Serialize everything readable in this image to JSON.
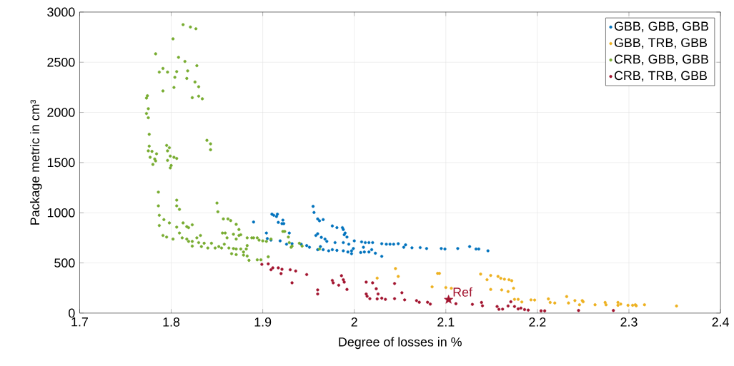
{
  "chart_data": {
    "type": "scatter",
    "xlabel": "Degree of losses in %",
    "ylabel": "Package metric in cm³",
    "xlim": [
      1.7,
      2.4
    ],
    "ylim": [
      0,
      3000
    ],
    "xticks": [
      1.7,
      1.8,
      1.9,
      2,
      2.1,
      2.2,
      2.3,
      2.4
    ],
    "yticks": [
      0,
      500,
      1000,
      1500,
      2000,
      2500,
      3000
    ],
    "grid": true,
    "legend": "top right",
    "series": [
      {
        "name": "GBB, GBB, GBB",
        "marker": "circle",
        "color": "#0072bd",
        "x": [
          1.89,
          1.904,
          1.905,
          1.909,
          1.91,
          1.912,
          1.915,
          1.916,
          1.917,
          1.922,
          1.921,
          1.923,
          1.919,
          1.926,
          1.929,
          1.932,
          1.942,
          1.955,
          1.956,
          1.96,
          1.966,
          1.962,
          1.976,
          1.981,
          1.987,
          1.988,
          1.99,
          1.989,
          1.992,
          1.958,
          1.96,
          1.964,
          1.968,
          1.97,
          1.979,
          1.988,
          1.994,
          2.0,
          1.999,
          1.997,
          1.997,
          1.993,
          1.988,
          1.981,
          1.976,
          1.972,
          1.966,
          1.96,
          1.963,
          1.951,
          1.948,
          2.008,
          2.012,
          2.016,
          2.02,
          2.01,
          2.007,
          2.011,
          2.016,
          2.019,
          2.023,
          2.03,
          2.03,
          2.035,
          2.039,
          2.043,
          2.048,
          2.054,
          2.056,
          2.063,
          2.072,
          2.079,
          2.095,
          2.099,
          2.113,
          2.126,
          2.133,
          2.136,
          2.146
        ],
        "values": [
          908,
          798,
          743,
          727,
          986,
          975,
          963,
          986,
          904,
          927,
          892,
          892,
          720,
          687,
          798,
          692,
          687,
          1064,
          1003,
          939,
          932,
          920,
          869,
          852,
          852,
          833,
          798,
          781,
          758,
          774,
          791,
          755,
          738,
          715,
          703,
          703,
          687,
          720,
          644,
          621,
          592,
          609,
          621,
          625,
          632,
          621,
          632,
          632,
          663,
          656,
          673,
          710,
          703,
          703,
          703,
          656,
          604,
          609,
          609,
          632,
          597,
          692,
          566,
          687,
          687,
          687,
          692,
          656,
          680,
          651,
          653,
          644,
          644,
          639,
          644,
          663,
          639,
          639,
          621
        ]
      },
      {
        "name": "GBB, TRB, GBB",
        "marker": "circle",
        "color": "#edb120",
        "x": [
          2.045,
          2.048,
          2.025,
          2.085,
          2.091,
          2.093,
          2.1,
          2.106,
          2.138,
          2.145,
          2.149,
          2.149,
          2.157,
          2.16,
          2.164,
          2.161,
          2.168,
          2.169,
          2.172,
          2.174,
          2.175,
          2.179,
          2.183,
          2.193,
          2.197,
          2.212,
          2.214,
          2.219,
          2.232,
          2.234,
          2.241,
          2.246,
          2.249,
          2.25,
          2.263,
          2.274,
          2.275,
          2.288,
          2.288,
          2.291,
          2.299,
          2.304,
          2.307,
          2.308,
          2.317,
          2.352
        ],
        "values": [
          444,
          366,
          349,
          262,
          396,
          396,
          255,
          248,
          389,
          333,
          375,
          236,
          366,
          347,
          338,
          231,
          215,
          333,
          323,
          248,
          137,
          137,
          111,
          132,
          130,
          142,
          106,
          101,
          165,
          101,
          125,
          83,
          125,
          113,
          83,
          106,
          83,
          106,
          78,
          90,
          78,
          78,
          83,
          73,
          83,
          71
        ]
      },
      {
        "name": "CRB, GBB, GBB",
        "marker": "circle",
        "color": "#77ac30",
        "x": [
          1.813,
          1.821,
          1.827,
          1.802,
          1.783,
          1.808,
          1.815,
          1.828,
          1.791,
          1.787,
          1.796,
          1.806,
          1.818,
          1.804,
          1.817,
          1.826,
          1.83,
          1.791,
          1.803,
          1.773,
          1.774,
          1.823,
          1.83,
          1.834,
          1.775,
          1.773,
          1.775,
          1.776,
          1.839,
          1.843,
          1.843,
          1.776,
          1.775,
          1.779,
          1.784,
          1.795,
          1.796,
          1.798,
          1.799,
          1.803,
          1.806,
          1.777,
          1.782,
          1.783,
          1.796,
          1.78,
          1.8,
          1.799,
          1.786,
          1.786,
          1.806,
          1.806,
          1.809,
          1.85,
          1.851,
          1.787,
          1.787,
          1.792,
          1.791,
          1.795,
          1.798,
          1.802,
          1.806,
          1.809,
          1.813,
          1.812,
          1.817,
          1.819,
          1.823,
          1.817,
          1.819,
          1.823,
          1.823,
          1.828,
          1.832,
          1.83,
          1.833,
          1.836,
          1.84,
          1.844,
          1.848,
          1.852,
          1.855,
          1.857,
          1.862,
          1.865,
          1.856,
          1.859,
          1.861,
          1.858,
          1.863,
          1.866,
          1.868,
          1.871,
          1.874,
          1.868,
          1.871,
          1.874,
          1.876,
          1.871,
          1.871,
          1.876,
          1.879,
          1.879,
          1.882,
          1.883,
          1.883,
          1.885,
          1.883,
          1.888,
          1.89,
          1.894,
          1.896,
          1.894,
          1.898,
          1.9,
          1.904,
          1.906,
          1.909,
          1.922,
          1.924,
          1.928,
          1.929,
          1.932,
          1.94,
          1.943,
          1.931,
          1.962
        ],
        "values": [
          2875,
          2851,
          2834,
          2733,
          2584,
          2549,
          2508,
          2466,
          2438,
          2402,
          2402,
          2407,
          2414,
          2350,
          2339,
          2303,
          2256,
          2214,
          2249,
          2143,
          2166,
          2147,
          2162,
          2136,
          2037,
          1989,
          1947,
          1782,
          1722,
          1687,
          1628,
          1664,
          1617,
          1612,
          1588,
          1671,
          1617,
          1648,
          1565,
          1553,
          1541,
          1553,
          1536,
          1517,
          1522,
          1482,
          1471,
          1447,
          1206,
          1069,
          1126,
          1069,
          1034,
          1097,
          1010,
          975,
          873,
          932,
          774,
          758,
          899,
          738,
          857,
          798,
          899,
          750,
          862,
          852,
          880,
          738,
          715,
          715,
          668,
          750,
          774,
          703,
          663,
          696,
          649,
          696,
          649,
          663,
          649,
          939,
          939,
          922,
          798,
          798,
          750,
          687,
          649,
          592,
          644,
          885,
          833,
          786,
          738,
          774,
          781,
          639,
          583,
          639,
          609,
          578,
          639,
          673,
          569,
          526,
          750,
          750,
          750,
          750,
          727,
          531,
          531,
          720,
          715,
          561,
          738,
          814,
          814,
          758,
          703,
          668,
          696,
          668,
          656,
          639
        ]
      },
      {
        "name": "CRB, TRB, GBB",
        "marker": "circle",
        "color": "#a2142f",
        "x": [
          1.899,
          1.906,
          1.911,
          1.909,
          1.917,
          1.921,
          1.92,
          1.93,
          1.936,
          1.932,
          1.948,
          1.96,
          1.96,
          1.976,
          1.977,
          1.986,
          1.988,
          1.989,
          1.983,
          1.992,
          2.013,
          2.02,
          2.024,
          2.026,
          2.013,
          2.014,
          2.017,
          2.025,
          2.03,
          2.034,
          2.044,
          2.044,
          2.052,
          2.055,
          2.068,
          2.071,
          2.08,
          2.083,
          2.111,
          2.129,
          2.139,
          2.14,
          2.156,
          2.158,
          2.162,
          2.168,
          2.171,
          2.175,
          2.179,
          2.182,
          2.186,
          2.19,
          2.204,
          2.208,
          2.245,
          2.283
        ],
        "values": [
          486,
          491,
          451,
          432,
          451,
          437,
          394,
          432,
          420,
          302,
          384,
          231,
          191,
          326,
          302,
          373,
          333,
          309,
          278,
          236,
          309,
          302,
          243,
          191,
          191,
          168,
          144,
          142,
          149,
          137,
          295,
          144,
          203,
          132,
          125,
          108,
          108,
          90,
          94,
          87,
          106,
          73,
          66,
          38,
          40,
          71,
          113,
          66,
          42,
          50,
          35,
          30,
          23,
          23,
          26,
          26
        ]
      },
      {
        "marker": "star",
        "color": "#a2142f",
        "x": [
          2.103
        ],
        "values": [
          134
        ]
      }
    ],
    "annotations": [
      {
        "text": "Ref",
        "x": 2.103,
        "y": 134
      }
    ]
  }
}
